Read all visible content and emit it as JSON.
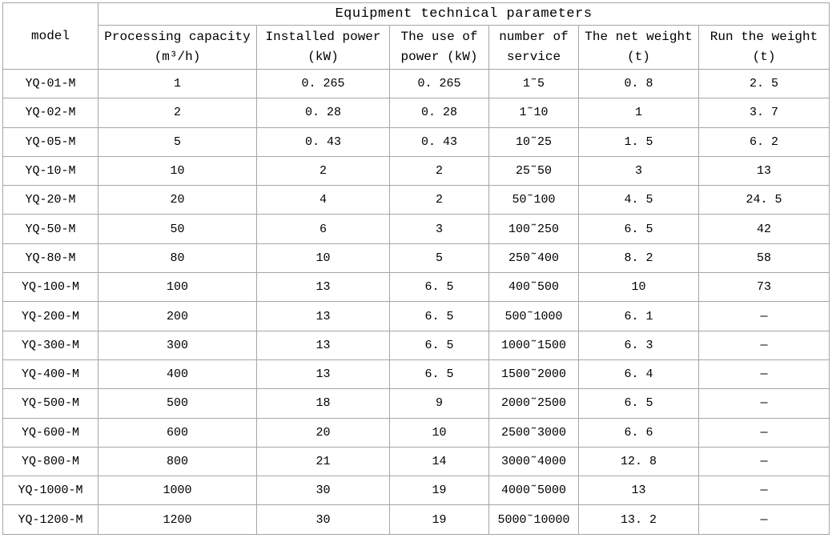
{
  "table": {
    "title": "Equipment technical parameters",
    "model_header": "model",
    "sub_headers": [
      "Processing capacity\n(m³/h)",
      "Installed power\n(kW)",
      "The use of\npower (kW)",
      "number of\nservice",
      "The net weight\n(t)",
      "Run the weight\n(t)"
    ],
    "rows": [
      [
        "YQ-01-M",
        "1",
        "0. 265",
        "0. 265",
        "1˜5",
        "0. 8",
        "2. 5"
      ],
      [
        "YQ-02-M",
        "2",
        "0. 28",
        "0. 28",
        "1˜10",
        "1",
        "3. 7"
      ],
      [
        "YQ-05-M",
        "5",
        "0. 43",
        "0. 43",
        "10˜25",
        "1. 5",
        "6. 2"
      ],
      [
        "YQ-10-M",
        "10",
        "2",
        "2",
        "25˜50",
        "3",
        "13"
      ],
      [
        "YQ-20-M",
        "20",
        "4",
        "2",
        "50˜100",
        "4. 5",
        "24. 5"
      ],
      [
        "YQ-50-M",
        "50",
        "6",
        "3",
        "100˜250",
        "6. 5",
        "42"
      ],
      [
        "YQ-80-M",
        "80",
        "10",
        "5",
        "250˜400",
        "8. 2",
        "58"
      ],
      [
        "YQ-100-M",
        "100",
        "13",
        "6. 5",
        "400˜500",
        "10",
        "73"
      ],
      [
        "YQ-200-M",
        "200",
        "13",
        "6. 5",
        "500˜1000",
        "6. 1",
        "—"
      ],
      [
        "YQ-300-M",
        "300",
        "13",
        "6. 5",
        "1000˜1500",
        "6. 3",
        "—"
      ],
      [
        "YQ-400-M",
        "400",
        "13",
        "6. 5",
        "1500˜2000",
        "6. 4",
        "—"
      ],
      [
        "YQ-500-M",
        "500",
        "18",
        "9",
        "2000˜2500",
        "6. 5",
        "—"
      ],
      [
        "YQ-600-M",
        "600",
        "20",
        "10",
        "2500˜3000",
        "6. 6",
        "—"
      ],
      [
        "YQ-800-M",
        "800",
        "21",
        "14",
        "3000˜4000",
        "12. 8",
        "—"
      ],
      [
        "YQ-1000-M",
        "1000",
        "30",
        "19",
        "4000˜5000",
        "13",
        "—"
      ],
      [
        "YQ-1200-M",
        "1200",
        "30",
        "19",
        "5000˜10000",
        "13. 2",
        "—"
      ]
    ]
  },
  "colors": {
    "border": "#a6a6a6",
    "text": "#000000",
    "background": "#ffffff"
  }
}
